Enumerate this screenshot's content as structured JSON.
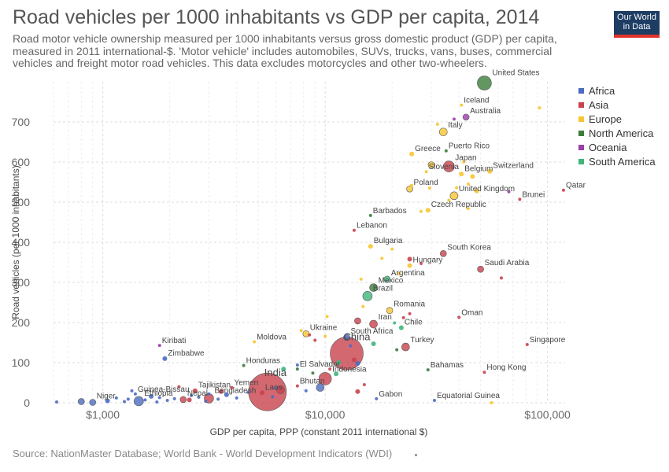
{
  "header": {
    "title": "Road vehicles per 1000 inhabitants vs GDP per capita, 2014",
    "subtitle": "Road motor vehicle ownership measured per 1000 inhabitants versus gross domestic product (GDP) per capita, measured in 2011 international-$. 'Motor vehicle' includes automobiles, SUVs, trucks, vans, buses, commercial vehicles and freight motor road vehicles. This data excludes motorcycles and other two-wheelers.",
    "logo_line1": "Our World",
    "logo_line2": "in Data"
  },
  "footer": {
    "source": "Source: NationMaster Database; World Bank - World Development Indicators (WDI)"
  },
  "colors": {
    "Africa": "#4c6bc0",
    "Asia": "#c8424e",
    "Europe": "#f7c62f",
    "North America": "#3b7d3b",
    "Oceania": "#9a3fa8",
    "South America": "#3fb67a"
  },
  "chart_data": {
    "type": "scatter",
    "title": "Road vehicles per 1000 inhabitants vs GDP per capita, 2014",
    "xlabel": "GDP per capita, PPP (constant 2011 international $)",
    "ylabel": "Road vehicles (per 1000 inhabitants)",
    "x_scale": "log",
    "xlim": [
      600,
      120000
    ],
    "ylim": [
      0,
      800
    ],
    "x_ticks": [
      {
        "value": 1000,
        "label": "$1,000"
      },
      {
        "value": 10000,
        "label": "$10,000"
      },
      {
        "value": 100000,
        "label": "$100,000"
      }
    ],
    "y_ticks": [
      0,
      100,
      200,
      300,
      400,
      500,
      600,
      700
    ],
    "grid": true,
    "legend": [
      "Africa",
      "Asia",
      "Europe",
      "North America",
      "Oceania",
      "South America"
    ],
    "legend_position": "right",
    "points": [
      {
        "label": "United States",
        "region": "North America",
        "x": 52000,
        "y": 797,
        "r": 9
      },
      {
        "label": "Iceland",
        "region": "Europe",
        "x": 41000,
        "y": 742,
        "r": 2
      },
      {
        "label": "Australia",
        "region": "Oceania",
        "x": 43000,
        "y": 712,
        "r": 4
      },
      {
        "label": "Italy",
        "region": "Europe",
        "x": 34000,
        "y": 675,
        "r": 5
      },
      {
        "label": "Puerto Rico",
        "region": "North America",
        "x": 35000,
        "y": 628,
        "r": 2
      },
      {
        "label": "Greece",
        "region": "Europe",
        "x": 24500,
        "y": 620,
        "r": 3
      },
      {
        "label": "Japan",
        "region": "Asia",
        "x": 36000,
        "y": 589,
        "r": 7
      },
      {
        "label": "Slovenia",
        "region": "Europe",
        "x": 28500,
        "y": 576,
        "r": 2
      },
      {
        "label": "Belgium",
        "region": "Europe",
        "x": 41000,
        "y": 570,
        "r": 3
      },
      {
        "label": "Switzerland",
        "region": "Europe",
        "x": 55000,
        "y": 577,
        "r": 3
      },
      {
        "label": "Poland",
        "region": "Europe",
        "x": 24000,
        "y": 533,
        "r": 4
      },
      {
        "label": "United Kingdom",
        "region": "Europe",
        "x": 38000,
        "y": 516,
        "r": 5
      },
      {
        "label": "Qatar",
        "region": "Asia",
        "x": 118000,
        "y": 530,
        "r": 2
      },
      {
        "label": "Brunei",
        "region": "Asia",
        "x": 75000,
        "y": 507,
        "r": 2
      },
      {
        "label": "Czech Republic",
        "region": "Europe",
        "x": 29000,
        "y": 480,
        "r": 3
      },
      {
        "label": "Barbados",
        "region": "North America",
        "x": 16000,
        "y": 467,
        "r": 2
      },
      {
        "label": "Lebanon",
        "region": "Asia",
        "x": 13500,
        "y": 430,
        "r": 2
      },
      {
        "label": "Bulgaria",
        "region": "Europe",
        "x": 16000,
        "y": 390,
        "r": 3
      },
      {
        "label": "South Korea",
        "region": "Asia",
        "x": 34000,
        "y": 372,
        "r": 4
      },
      {
        "label": "Hungary",
        "region": "Europe",
        "x": 24000,
        "y": 342,
        "r": 3
      },
      {
        "label": "Saudi Arabia",
        "region": "Asia",
        "x": 50000,
        "y": 333,
        "r": 4
      },
      {
        "label": "Argentina",
        "region": "South America",
        "x": 19000,
        "y": 308,
        "r": 4
      },
      {
        "label": "Mexico",
        "region": "North America",
        "x": 16500,
        "y": 287,
        "r": 5
      },
      {
        "label": "Brazil",
        "region": "South America",
        "x": 15500,
        "y": 266,
        "r": 6
      },
      {
        "label": "Romania",
        "region": "Europe",
        "x": 19500,
        "y": 230,
        "r": 4
      },
      {
        "label": "Oman",
        "region": "Asia",
        "x": 40000,
        "y": 213,
        "r": 2
      },
      {
        "label": "Iran",
        "region": "Asia",
        "x": 16500,
        "y": 196,
        "r": 5
      },
      {
        "label": "Chile",
        "region": "South America",
        "x": 22000,
        "y": 187,
        "r": 3
      },
      {
        "label": "South Africa",
        "region": "Africa",
        "x": 12500,
        "y": 163,
        "r": 4
      },
      {
        "label": "Ukraine",
        "region": "Europe",
        "x": 8200,
        "y": 172,
        "r": 4
      },
      {
        "label": "Moldova",
        "region": "Europe",
        "x": 4800,
        "y": 152,
        "r": 2
      },
      {
        "label": "Kiribati",
        "region": "Oceania",
        "x": 1800,
        "y": 143,
        "r": 2
      },
      {
        "label": "Singapore",
        "region": "Asia",
        "x": 81000,
        "y": 145,
        "r": 2
      },
      {
        "label": "Turkey",
        "region": "Asia",
        "x": 23000,
        "y": 139,
        "r": 5
      },
      {
        "label": "China",
        "region": "Asia",
        "x": 12500,
        "y": 123,
        "r": 21
      },
      {
        "label": "Zimbabwe",
        "region": "Africa",
        "x": 1900,
        "y": 110,
        "r": 3
      },
      {
        "label": "Honduras",
        "region": "North America",
        "x": 4300,
        "y": 93,
        "r": 2
      },
      {
        "label": "El Salvador",
        "region": "North America",
        "x": 7500,
        "y": 84,
        "r": 2
      },
      {
        "label": "Bahamas",
        "region": "North America",
        "x": 29000,
        "y": 82,
        "r": 2
      },
      {
        "label": "Hong Kong",
        "region": "Asia",
        "x": 52000,
        "y": 76,
        "r": 2
      },
      {
        "label": "Indonesia",
        "region": "Asia",
        "x": 10000,
        "y": 60,
        "r": 8
      },
      {
        "label": "India",
        "region": "Asia",
        "x": 5500,
        "y": 27,
        "r": 24
      },
      {
        "label": "Bhutan",
        "region": "Asia",
        "x": 7500,
        "y": 42,
        "r": 2
      },
      {
        "label": "Yemen",
        "region": "Asia",
        "x": 3800,
        "y": 38,
        "r": 2
      },
      {
        "label": "Tajikistan",
        "region": "Asia",
        "x": 2600,
        "y": 30,
        "r": 3
      },
      {
        "label": "Laos",
        "region": "Asia",
        "x": 5200,
        "y": 25,
        "r": 3
      },
      {
        "label": "Guinea-Bissau",
        "region": "Africa",
        "x": 1400,
        "y": 22,
        "r": 2
      },
      {
        "label": "Bangladesh",
        "region": "Asia",
        "x": 3000,
        "y": 11,
        "r": 6
      },
      {
        "label": "Nepal",
        "region": "Asia",
        "x": 2300,
        "y": 8,
        "r": 4
      },
      {
        "label": "Ethiopia",
        "region": "Africa",
        "x": 1450,
        "y": 4,
        "r": 6
      },
      {
        "label": "Niger",
        "region": "Africa",
        "x": 900,
        "y": 1,
        "r": 4
      },
      {
        "label": "Gabon",
        "region": "Africa",
        "x": 17000,
        "y": 10,
        "r": 2
      },
      {
        "label": "Equatorial Guinea",
        "region": "Africa",
        "x": 31000,
        "y": 6,
        "r": 2
      },
      {
        "label": "",
        "region": "Europe",
        "x": 92000,
        "y": 735,
        "r": 2
      },
      {
        "label": "",
        "region": "Oceania",
        "x": 38000,
        "y": 707,
        "r": 2
      },
      {
        "label": "",
        "region": "Europe",
        "x": 32000,
        "y": 694,
        "r": 2
      },
      {
        "label": "",
        "region": "Europe",
        "x": 30000,
        "y": 593,
        "r": 4
      },
      {
        "label": "",
        "region": "Europe",
        "x": 42000,
        "y": 600,
        "r": 2
      },
      {
        "label": "",
        "region": "Europe",
        "x": 46000,
        "y": 564,
        "r": 3
      },
      {
        "label": "",
        "region": "Europe",
        "x": 44000,
        "y": 545,
        "r": 2
      },
      {
        "label": "",
        "region": "Europe",
        "x": 48000,
        "y": 528,
        "r": 3
      },
      {
        "label": "",
        "region": "Europe",
        "x": 39000,
        "y": 536,
        "r": 2
      },
      {
        "label": "",
        "region": "Europe",
        "x": 36000,
        "y": 505,
        "r": 2
      },
      {
        "label": "",
        "region": "Europe",
        "x": 44000,
        "y": 484,
        "r": 2
      },
      {
        "label": "",
        "region": "Europe",
        "x": 27000,
        "y": 477,
        "r": 2
      },
      {
        "label": "",
        "region": "Europe",
        "x": 29500,
        "y": 535,
        "r": 2
      },
      {
        "label": "",
        "region": "Oceania",
        "x": 67000,
        "y": 526,
        "r": 2
      },
      {
        "label": "",
        "region": "Europe",
        "x": 24500,
        "y": 542,
        "r": 2
      },
      {
        "label": "",
        "region": "Europe",
        "x": 20000,
        "y": 383,
        "r": 2
      },
      {
        "label": "",
        "region": "Europe",
        "x": 18000,
        "y": 360,
        "r": 2
      },
      {
        "label": "",
        "region": "Asia",
        "x": 24000,
        "y": 358,
        "r": 3
      },
      {
        "label": "",
        "region": "Europe",
        "x": 21500,
        "y": 322,
        "r": 2
      },
      {
        "label": "",
        "region": "Asia",
        "x": 27000,
        "y": 347,
        "r": 2
      },
      {
        "label": "",
        "region": "Asia",
        "x": 62000,
        "y": 311,
        "r": 2
      },
      {
        "label": "",
        "region": "Europe",
        "x": 14500,
        "y": 308,
        "r": 2
      },
      {
        "label": "",
        "region": "Europe",
        "x": 14800,
        "y": 240,
        "r": 2
      },
      {
        "label": "",
        "region": "Asia",
        "x": 14000,
        "y": 204,
        "r": 4
      },
      {
        "label": "",
        "region": "South America",
        "x": 20500,
        "y": 199,
        "r": 2
      },
      {
        "label": "",
        "region": "Asia",
        "x": 22500,
        "y": 212,
        "r": 2
      },
      {
        "label": "",
        "region": "Asia",
        "x": 24000,
        "y": 222,
        "r": 2
      },
      {
        "label": "",
        "region": "Europe",
        "x": 10200,
        "y": 215,
        "r": 2
      },
      {
        "label": "",
        "region": "Europe",
        "x": 7800,
        "y": 180,
        "r": 2
      },
      {
        "label": "",
        "region": "Asia",
        "x": 8500,
        "y": 169,
        "r": 2
      },
      {
        "label": "",
        "region": "Asia",
        "x": 9000,
        "y": 156,
        "r": 2
      },
      {
        "label": "",
        "region": "South America",
        "x": 16500,
        "y": 147,
        "r": 3
      },
      {
        "label": "",
        "region": "Europe",
        "x": 10000,
        "y": 166,
        "r": 2
      },
      {
        "label": "",
        "region": "Africa",
        "x": 13000,
        "y": 142,
        "r": 2
      },
      {
        "label": "",
        "region": "North America",
        "x": 21000,
        "y": 132,
        "r": 2
      },
      {
        "label": "",
        "region": "South America",
        "x": 11500,
        "y": 100,
        "r": 3
      },
      {
        "label": "",
        "region": "Africa",
        "x": 14000,
        "y": 98,
        "r": 3
      },
      {
        "label": "",
        "region": "Africa",
        "x": 7500,
        "y": 94,
        "r": 2
      },
      {
        "label": "",
        "region": "Asia",
        "x": 13500,
        "y": 107,
        "r": 3
      },
      {
        "label": "",
        "region": "South America",
        "x": 6500,
        "y": 84,
        "r": 3
      },
      {
        "label": "",
        "region": "Asia",
        "x": 10500,
        "y": 84,
        "r": 2
      },
      {
        "label": "",
        "region": "South America",
        "x": 11200,
        "y": 72,
        "r": 3
      },
      {
        "label": "",
        "region": "North America",
        "x": 8800,
        "y": 74,
        "r": 2
      },
      {
        "label": "",
        "region": "Asia",
        "x": 15000,
        "y": 45,
        "r": 2
      },
      {
        "label": "",
        "region": "Asia",
        "x": 14000,
        "y": 28,
        "r": 3
      },
      {
        "label": "",
        "region": "Africa",
        "x": 9500,
        "y": 38,
        "r": 5
      },
      {
        "label": "",
        "region": "Africa",
        "x": 8200,
        "y": 30,
        "r": 2
      },
      {
        "label": "",
        "region": "Africa",
        "x": 6000,
        "y": 36,
        "r": 2
      },
      {
        "label": "",
        "region": "Asia",
        "x": 6300,
        "y": 32,
        "r": 5
      },
      {
        "label": "",
        "region": "Africa",
        "x": 4500,
        "y": 26,
        "r": 2
      },
      {
        "label": "",
        "region": "Africa",
        "x": 3600,
        "y": 20,
        "r": 3
      },
      {
        "label": "",
        "region": "Africa",
        "x": 3000,
        "y": 22,
        "r": 2
      },
      {
        "label": "",
        "region": "Africa",
        "x": 2700,
        "y": 14,
        "r": 2
      },
      {
        "label": "",
        "region": "Africa",
        "x": 2500,
        "y": 18,
        "r": 2
      },
      {
        "label": "",
        "region": "Africa",
        "x": 2100,
        "y": 10,
        "r": 2
      },
      {
        "label": "",
        "region": "Africa",
        "x": 1950,
        "y": 6,
        "r": 2
      },
      {
        "label": "",
        "region": "Africa",
        "x": 1800,
        "y": 13,
        "r": 2
      },
      {
        "label": "",
        "region": "Africa",
        "x": 1650,
        "y": 16,
        "r": 3
      },
      {
        "label": "",
        "region": "Africa",
        "x": 1550,
        "y": 7,
        "r": 2
      },
      {
        "label": "",
        "region": "Africa",
        "x": 1300,
        "y": 9,
        "r": 2
      },
      {
        "label": "",
        "region": "Africa",
        "x": 1250,
        "y": 3,
        "r": 2
      },
      {
        "label": "",
        "region": "Africa",
        "x": 1150,
        "y": 12,
        "r": 2
      },
      {
        "label": "",
        "region": "Africa",
        "x": 1050,
        "y": 5,
        "r": 3
      },
      {
        "label": "",
        "region": "Africa",
        "x": 800,
        "y": 3,
        "r": 4
      },
      {
        "label": "",
        "region": "Africa",
        "x": 620,
        "y": 2,
        "r": 2
      },
      {
        "label": "",
        "region": "Africa",
        "x": 1350,
        "y": 30,
        "r": 2
      },
      {
        "label": "",
        "region": "Africa",
        "x": 2900,
        "y": 4,
        "r": 2
      },
      {
        "label": "",
        "region": "Asia",
        "x": 2200,
        "y": 40,
        "r": 2
      },
      {
        "label": "",
        "region": "Asia",
        "x": 2450,
        "y": 7,
        "r": 3
      },
      {
        "label": "",
        "region": "Africa",
        "x": 3300,
        "y": 9,
        "r": 2
      },
      {
        "label": "",
        "region": "Africa",
        "x": 4000,
        "y": 12,
        "r": 2
      },
      {
        "label": "",
        "region": "Asia",
        "x": 3400,
        "y": 28,
        "r": 3
      },
      {
        "label": "",
        "region": "Africa",
        "x": 5800,
        "y": 15,
        "r": 2
      },
      {
        "label": "",
        "region": "Europe",
        "x": 56000,
        "y": 0,
        "r": 2
      },
      {
        "label": "",
        "region": "Africa",
        "x": 1750,
        "y": 2,
        "r": 2
      }
    ]
  }
}
